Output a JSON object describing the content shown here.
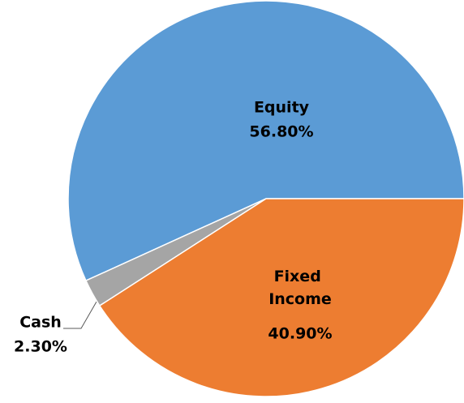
{
  "chart_data": {
    "type": "pie",
    "categories": [
      "Equity",
      "Fixed Income",
      "Cash"
    ],
    "values": [
      56.8,
      40.9,
      2.3
    ],
    "value_labels": [
      "56.80%",
      "40.90%",
      "2.30%"
    ],
    "colors": [
      "#5b9bd5",
      "#ed7d31",
      "#a5a5a5"
    ],
    "order": [
      "Equity",
      "Cash",
      "Fixed Income"
    ]
  }
}
